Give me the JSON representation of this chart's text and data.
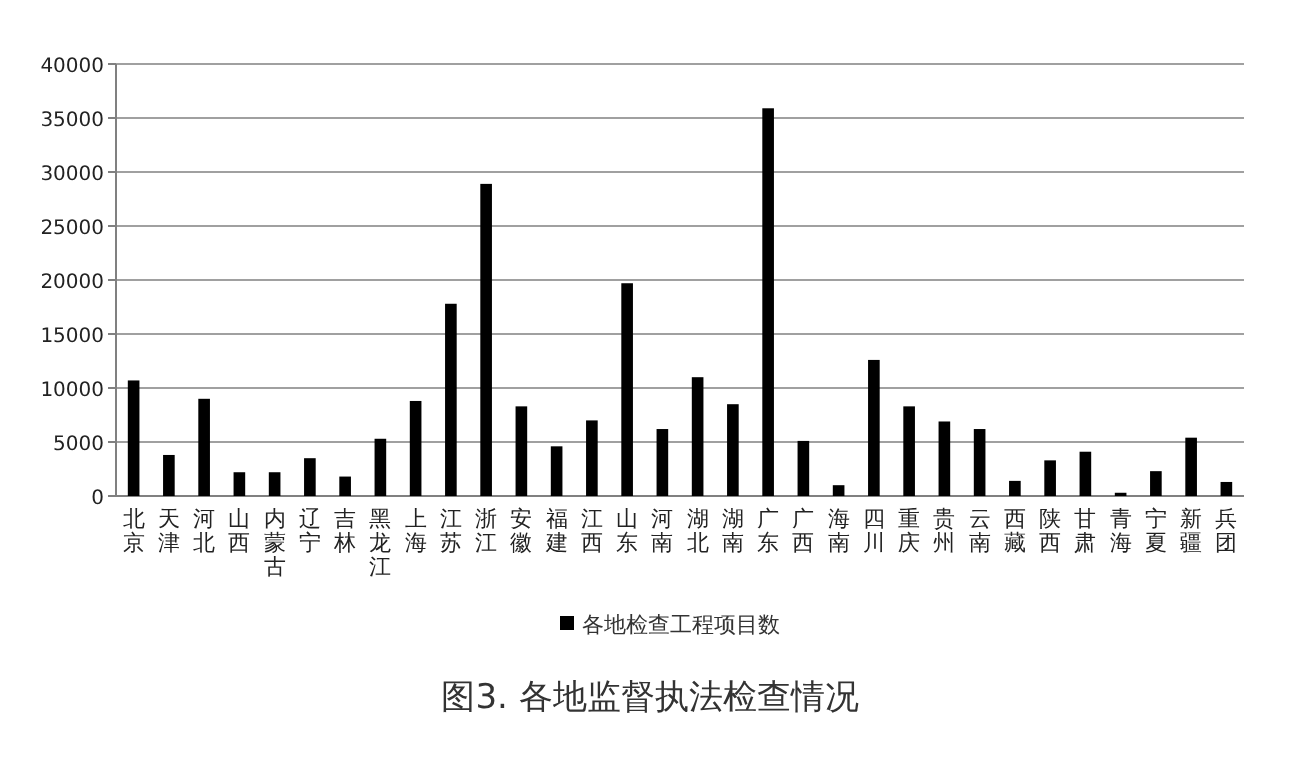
{
  "chart_data": {
    "type": "bar",
    "title": "图3. 各地监督执法检查情况",
    "categories": [
      "北京",
      "天津",
      "河北",
      "山西",
      "内蒙古",
      "辽宁",
      "吉林",
      "黑龙江",
      "上海",
      "江苏",
      "浙江",
      "安徽",
      "福建",
      "江西",
      "山东",
      "河南",
      "湖北",
      "湖南",
      "广东",
      "广西",
      "海南",
      "四川",
      "重庆",
      "贵州",
      "云南",
      "西藏",
      "陕西",
      "甘肃",
      "青海",
      "宁夏",
      "新疆",
      "兵团"
    ],
    "series": [
      {
        "name": "各地检查工程项目数",
        "color": "#000000",
        "values": [
          10700,
          3800,
          9000,
          2200,
          2200,
          3500,
          1800,
          5300,
          8800,
          17800,
          28900,
          8300,
          4600,
          7000,
          19700,
          6200,
          11000,
          8500,
          35900,
          5100,
          1000,
          12600,
          8300,
          6900,
          6200,
          1400,
          3300,
          4100,
          300,
          2300,
          5400,
          1300
        ]
      }
    ],
    "ylim": [
      0,
      40000
    ],
    "yticks": [
      0,
      5000,
      10000,
      15000,
      20000,
      25000,
      30000,
      35000,
      40000
    ],
    "grid": "y",
    "legend": "bottom"
  }
}
